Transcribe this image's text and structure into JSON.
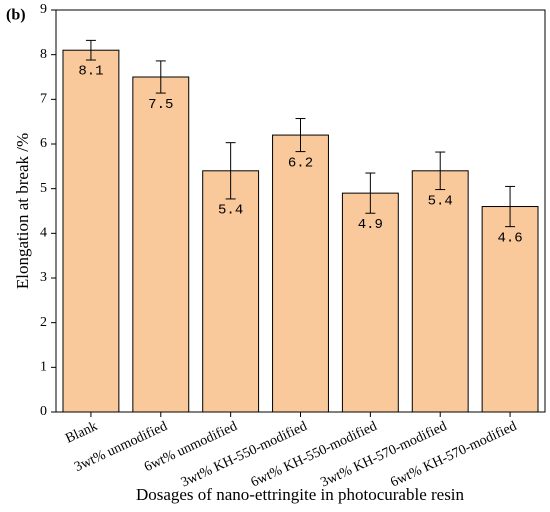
{
  "chart_data": {
    "type": "bar",
    "panel_label": "(b)",
    "xlabel": "Dosages of nano-ettringite  in photocurable resin",
    "ylabel": "Elongation at break /%",
    "categories": [
      "Blank",
      "3wt% unmodified",
      "6wt% unmodified",
      "3wt% KH-550-modified",
      "6wt% KH-550-modified",
      "3wt% KH-570-modified",
      "6wt% KH-570-modified"
    ],
    "values": [
      8.1,
      7.5,
      5.4,
      6.2,
      4.9,
      5.4,
      4.6
    ],
    "errors": [
      0.22,
      0.36,
      0.63,
      0.37,
      0.45,
      0.42,
      0.45
    ],
    "color": "#f9c99b",
    "ylim": [
      0,
      9
    ],
    "yticks": [
      0,
      1,
      2,
      3,
      4,
      5,
      6,
      7,
      8,
      9
    ]
  }
}
